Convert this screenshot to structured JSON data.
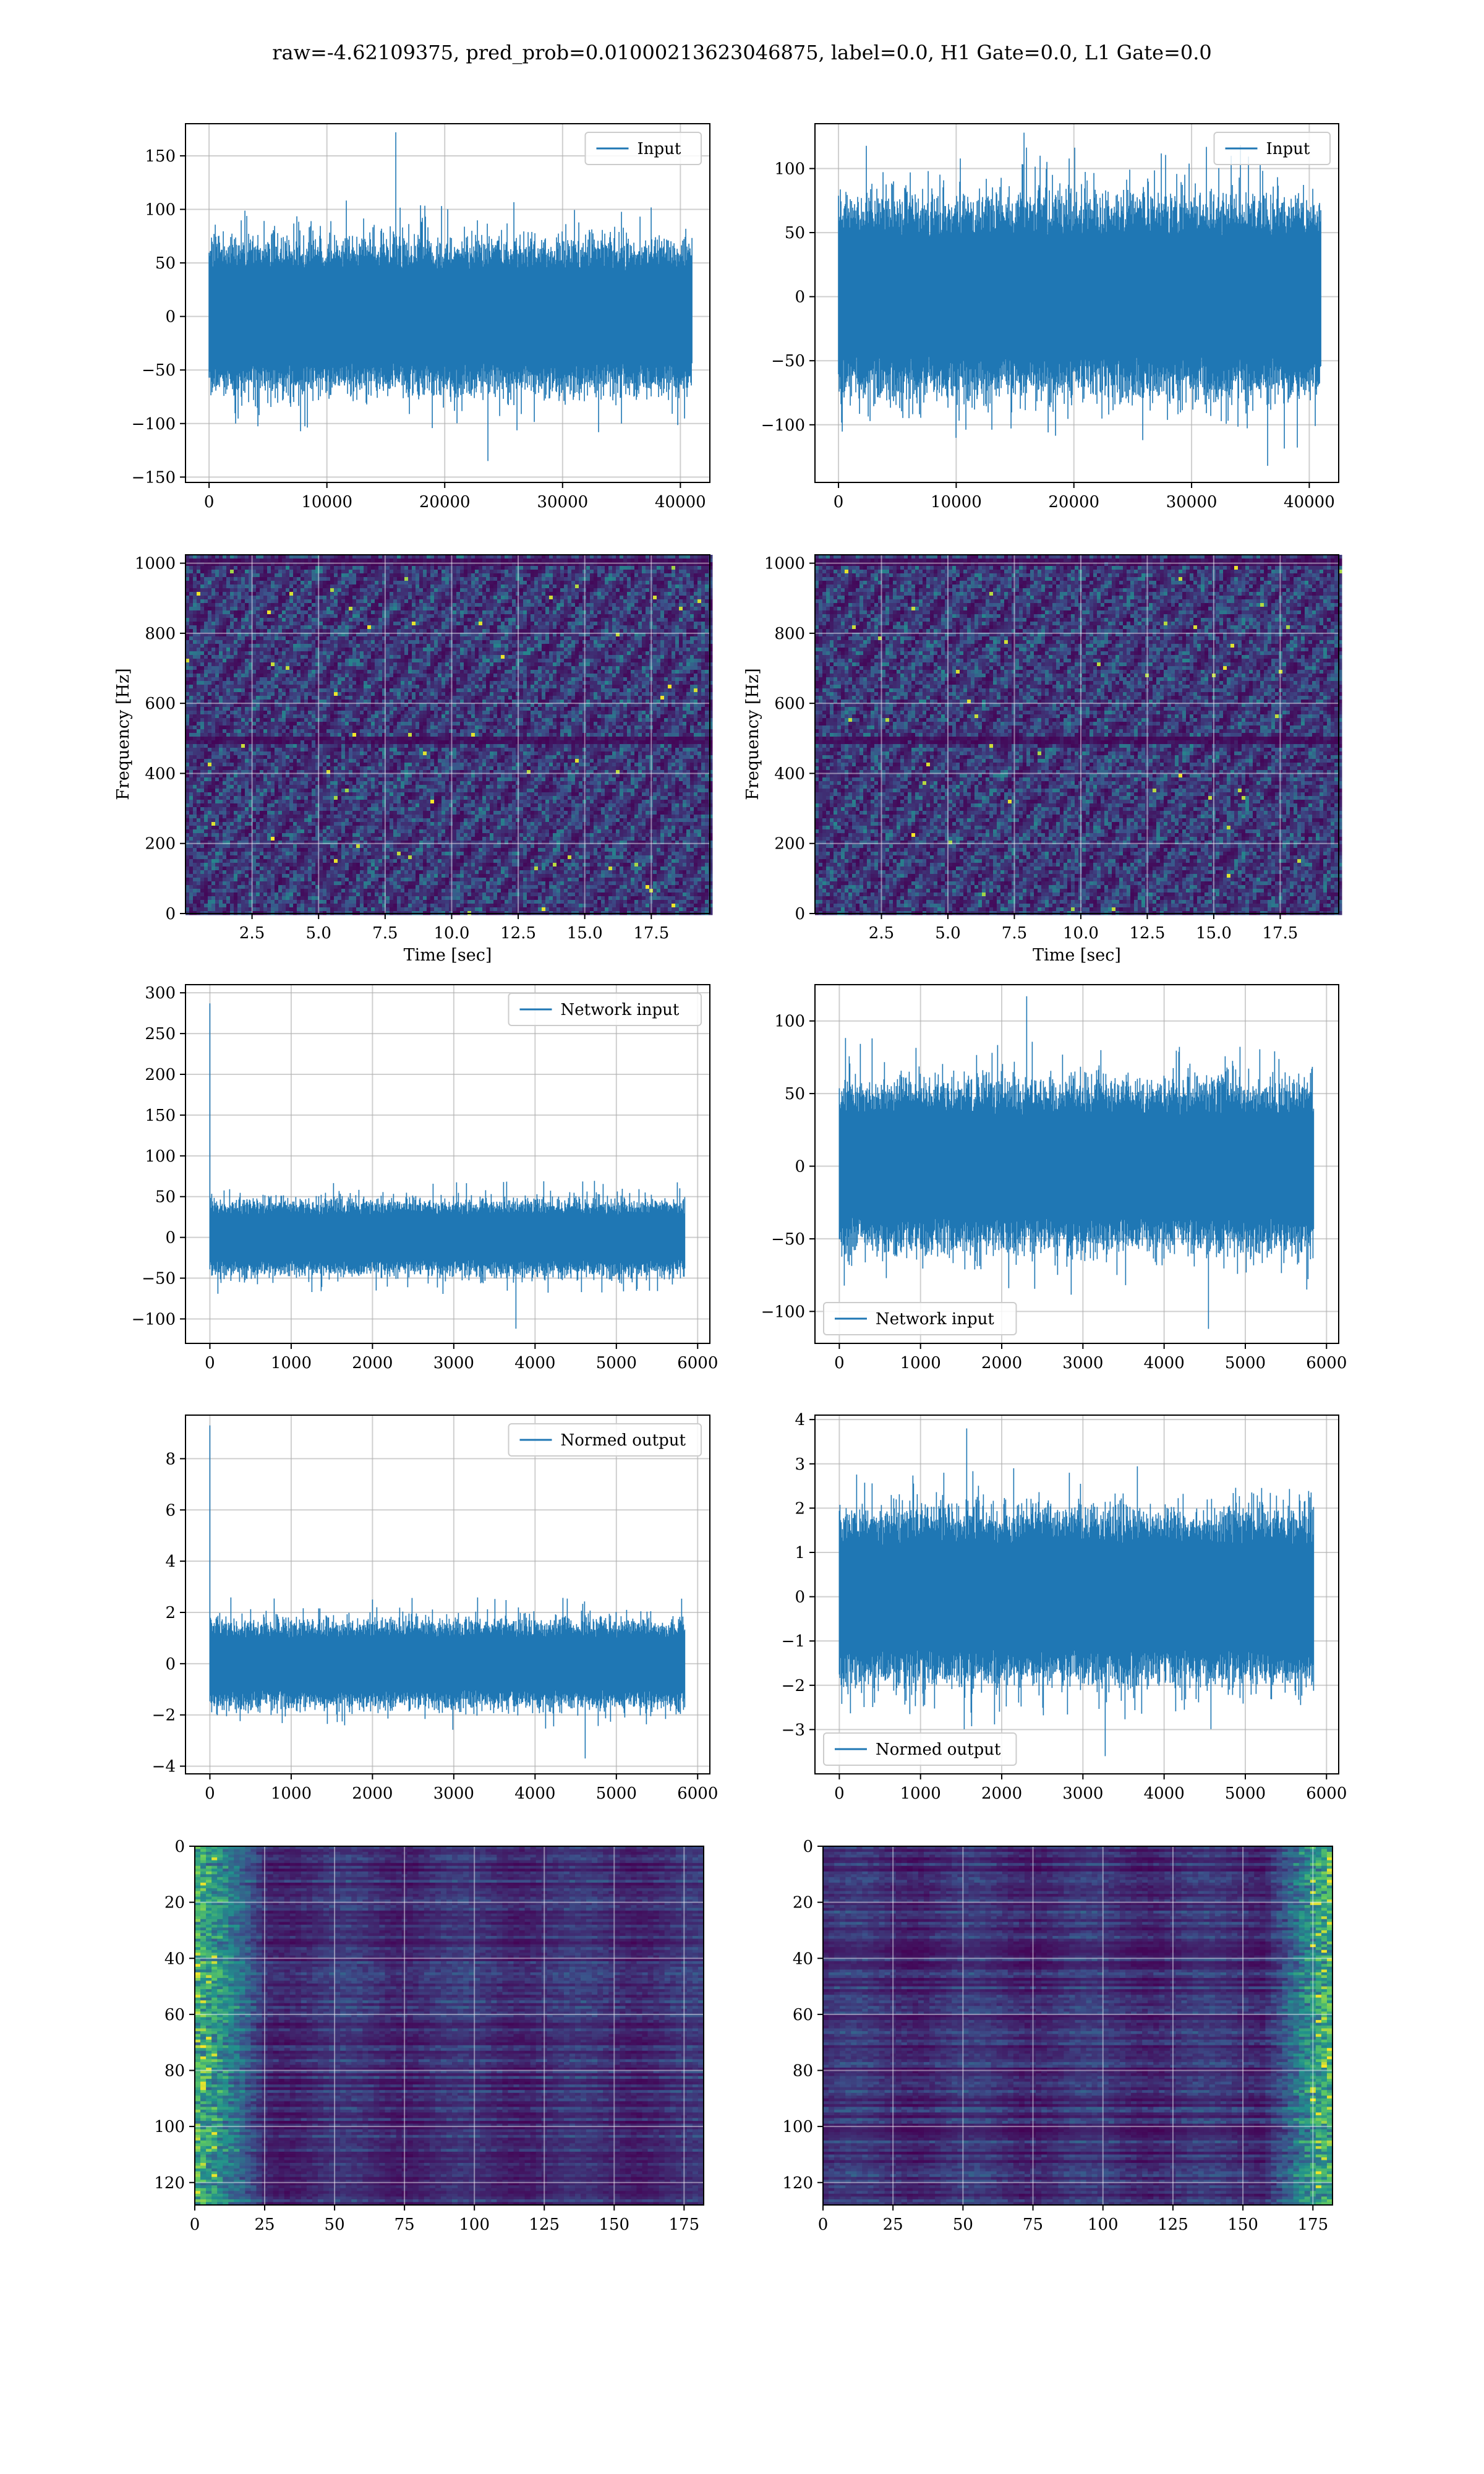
{
  "suptitle": "raw=-4.62109375, pred_prob=0.01000213623046875, label=0.0, H1 Gate=0.0, L1 Gate=0.0",
  "colors": {
    "line": "#1f77b4",
    "grid": "#b0b0b0",
    "viridis_dark": "#440154",
    "viridis_blue": "#3b528b",
    "viridis_teal": "#21918c",
    "viridis_green": "#5ec962",
    "viridis_yellow": "#fde725"
  },
  "chart_data": [
    {
      "id": "row1-left",
      "type": "line",
      "legend": {
        "label": "Input",
        "loc": "upper right"
      },
      "xlim": [
        -2000,
        42500
      ],
      "ylim": [
        -155,
        180
      ],
      "xticks": [
        0,
        10000,
        20000,
        30000,
        40000
      ],
      "xticklabels": [
        "0",
        "10000",
        "20000",
        "30000",
        "40000"
      ],
      "yticks": [
        -150,
        -100,
        -50,
        0,
        50,
        100,
        150
      ],
      "yticklabels": [
        "−150",
        "−100",
        "−50",
        "0",
        "50",
        "100",
        "150"
      ],
      "series": [
        {
          "name": "Input",
          "n": 40960,
          "x_range": [
            0,
            40960
          ],
          "mean": 0,
          "band": 55,
          "peak_low": -135,
          "peak_high": 172
        }
      ],
      "grid": true
    },
    {
      "id": "row1-right",
      "type": "line",
      "legend": {
        "label": "Input",
        "loc": "upper right"
      },
      "xlim": [
        -2000,
        42500
      ],
      "ylim": [
        -145,
        135
      ],
      "xticks": [
        0,
        10000,
        20000,
        30000,
        40000
      ],
      "xticklabels": [
        "0",
        "10000",
        "20000",
        "30000",
        "40000"
      ],
      "yticks": [
        -100,
        -50,
        0,
        50,
        100
      ],
      "yticklabels": [
        "−100",
        "−50",
        "0",
        "50",
        "100"
      ],
      "series": [
        {
          "name": "Input",
          "n": 40960,
          "x_range": [
            0,
            40960
          ],
          "mean": 0,
          "band": 60,
          "peak_low": -132,
          "peak_high": 128
        }
      ],
      "grid": true
    },
    {
      "id": "row2-left",
      "type": "heatmap",
      "xlabel": "Time [sec]",
      "ylabel": "Frequency [Hz]",
      "xlim": [
        0,
        19.7
      ],
      "ylim": [
        0,
        1024
      ],
      "xticks": [
        2.5,
        5.0,
        7.5,
        10.0,
        12.5,
        15.0,
        17.5
      ],
      "xticklabels": [
        "2.5",
        "5.0",
        "7.5",
        "10.0",
        "12.5",
        "15.0",
        "17.5"
      ],
      "yticks": [
        0,
        200,
        400,
        600,
        800,
        1000
      ],
      "yticklabels": [
        "0",
        "200",
        "400",
        "600",
        "800",
        "1000"
      ],
      "dark_bands_hz": [
        500,
        1000
      ],
      "grid": true
    },
    {
      "id": "row2-right",
      "type": "heatmap",
      "xlabel": "Time [sec]",
      "ylabel": "Frequency [Hz]",
      "xlim": [
        0,
        19.7
      ],
      "ylim": [
        0,
        1024
      ],
      "xticks": [
        2.5,
        5.0,
        7.5,
        10.0,
        12.5,
        15.0,
        17.5
      ],
      "xticklabels": [
        "2.5",
        "5.0",
        "7.5",
        "10.0",
        "12.5",
        "15.0",
        "17.5"
      ],
      "yticks": [
        0,
        200,
        400,
        600,
        800,
        1000
      ],
      "yticklabels": [
        "0",
        "200",
        "400",
        "600",
        "800",
        "1000"
      ],
      "dark_bands_hz": [
        500,
        1000
      ],
      "grid": true
    },
    {
      "id": "row3-left",
      "type": "line",
      "legend": {
        "label": "Network input",
        "loc": "upper right"
      },
      "xlim": [
        -300,
        6150
      ],
      "ylim": [
        -130,
        310
      ],
      "xticks": [
        0,
        1000,
        2000,
        3000,
        4000,
        5000,
        6000
      ],
      "xticklabels": [
        "0",
        "1000",
        "2000",
        "3000",
        "4000",
        "5000",
        "6000"
      ],
      "yticks": [
        -100,
        -50,
        0,
        50,
        100,
        150,
        200,
        250,
        300
      ],
      "yticklabels": [
        "−100",
        "−50",
        "0",
        "50",
        "100",
        "150",
        "200",
        "250",
        "300"
      ],
      "series": [
        {
          "name": "Network input",
          "n": 5840,
          "x_range": [
            0,
            5840
          ],
          "mean": 0,
          "band": 35,
          "peak_low": -112,
          "peak_high": 287,
          "spike_x": 0
        }
      ],
      "grid": true
    },
    {
      "id": "row3-right",
      "type": "line",
      "legend": {
        "label": "Network input",
        "loc": "lower left"
      },
      "xlim": [
        -300,
        6150
      ],
      "ylim": [
        -122,
        125
      ],
      "xticks": [
        0,
        1000,
        2000,
        3000,
        4000,
        5000,
        6000
      ],
      "xticklabels": [
        "0",
        "1000",
        "2000",
        "3000",
        "4000",
        "5000",
        "6000"
      ],
      "yticks": [
        -100,
        -50,
        0,
        50,
        100
      ],
      "yticklabels": [
        "−100",
        "−50",
        "0",
        "50",
        "100"
      ],
      "series": [
        {
          "name": "Network input",
          "n": 5840,
          "x_range": [
            0,
            5840
          ],
          "mean": 0,
          "band": 45,
          "peak_low": -112,
          "peak_high": 117
        }
      ],
      "grid": true
    },
    {
      "id": "row4-left",
      "type": "line",
      "legend": {
        "label": "Normed output",
        "loc": "upper right"
      },
      "xlim": [
        -300,
        6150
      ],
      "ylim": [
        -4.3,
        9.7
      ],
      "xticks": [
        0,
        1000,
        2000,
        3000,
        4000,
        5000,
        6000
      ],
      "xticklabels": [
        "0",
        "1000",
        "2000",
        "3000",
        "4000",
        "5000",
        "6000"
      ],
      "yticks": [
        -4,
        -2,
        0,
        2,
        4,
        6,
        8
      ],
      "yticklabels": [
        "−4",
        "−2",
        "0",
        "2",
        "4",
        "6",
        "8"
      ],
      "series": [
        {
          "name": "Normed output",
          "n": 5840,
          "x_range": [
            0,
            5840
          ],
          "mean": 0,
          "band": 1.3,
          "peak_low": -3.7,
          "peak_high": 9.3,
          "spike_x": 0
        }
      ],
      "grid": true
    },
    {
      "id": "row4-right",
      "type": "line",
      "legend": {
        "label": "Normed output",
        "loc": "lower left"
      },
      "xlim": [
        -300,
        6150
      ],
      "ylim": [
        -4.0,
        4.1
      ],
      "xticks": [
        0,
        1000,
        2000,
        3000,
        4000,
        5000,
        6000
      ],
      "xticklabels": [
        "0",
        "1000",
        "2000",
        "3000",
        "4000",
        "5000",
        "6000"
      ],
      "yticks": [
        -3,
        -2,
        -1,
        0,
        1,
        2,
        3,
        4
      ],
      "yticklabels": [
        "−3",
        "−2",
        "−1",
        "0",
        "1",
        "2",
        "3",
        "4"
      ],
      "series": [
        {
          "name": "Normed output",
          "n": 5840,
          "x_range": [
            0,
            5840
          ],
          "mean": 0,
          "band": 1.5,
          "peak_low": -3.6,
          "peak_high": 3.8
        }
      ],
      "grid": true
    },
    {
      "id": "row5-left",
      "type": "heatmap",
      "xlim": [
        0,
        182
      ],
      "ylim": [
        128,
        0
      ],
      "xticks": [
        0,
        25,
        50,
        75,
        100,
        125,
        150,
        175
      ],
      "xticklabels": [
        "0",
        "25",
        "50",
        "75",
        "100",
        "125",
        "150",
        "175"
      ],
      "yticks": [
        0,
        20,
        40,
        60,
        80,
        100,
        120
      ],
      "yticklabels": [
        "0",
        "20",
        "40",
        "60",
        "80",
        "100",
        "120"
      ],
      "bright_side": "left",
      "grid": true
    },
    {
      "id": "row5-right",
      "type": "heatmap",
      "xlim": [
        0,
        182
      ],
      "ylim": [
        128,
        0
      ],
      "xticks": [
        0,
        25,
        50,
        75,
        100,
        125,
        150,
        175
      ],
      "xticklabels": [
        "0",
        "25",
        "50",
        "75",
        "100",
        "125",
        "150",
        "175"
      ],
      "yticks": [
        0,
        20,
        40,
        60,
        80,
        100,
        120
      ],
      "yticklabels": [
        "0",
        "20",
        "40",
        "60",
        "80",
        "100",
        "120"
      ],
      "bright_side": "right",
      "grid": true
    }
  ]
}
